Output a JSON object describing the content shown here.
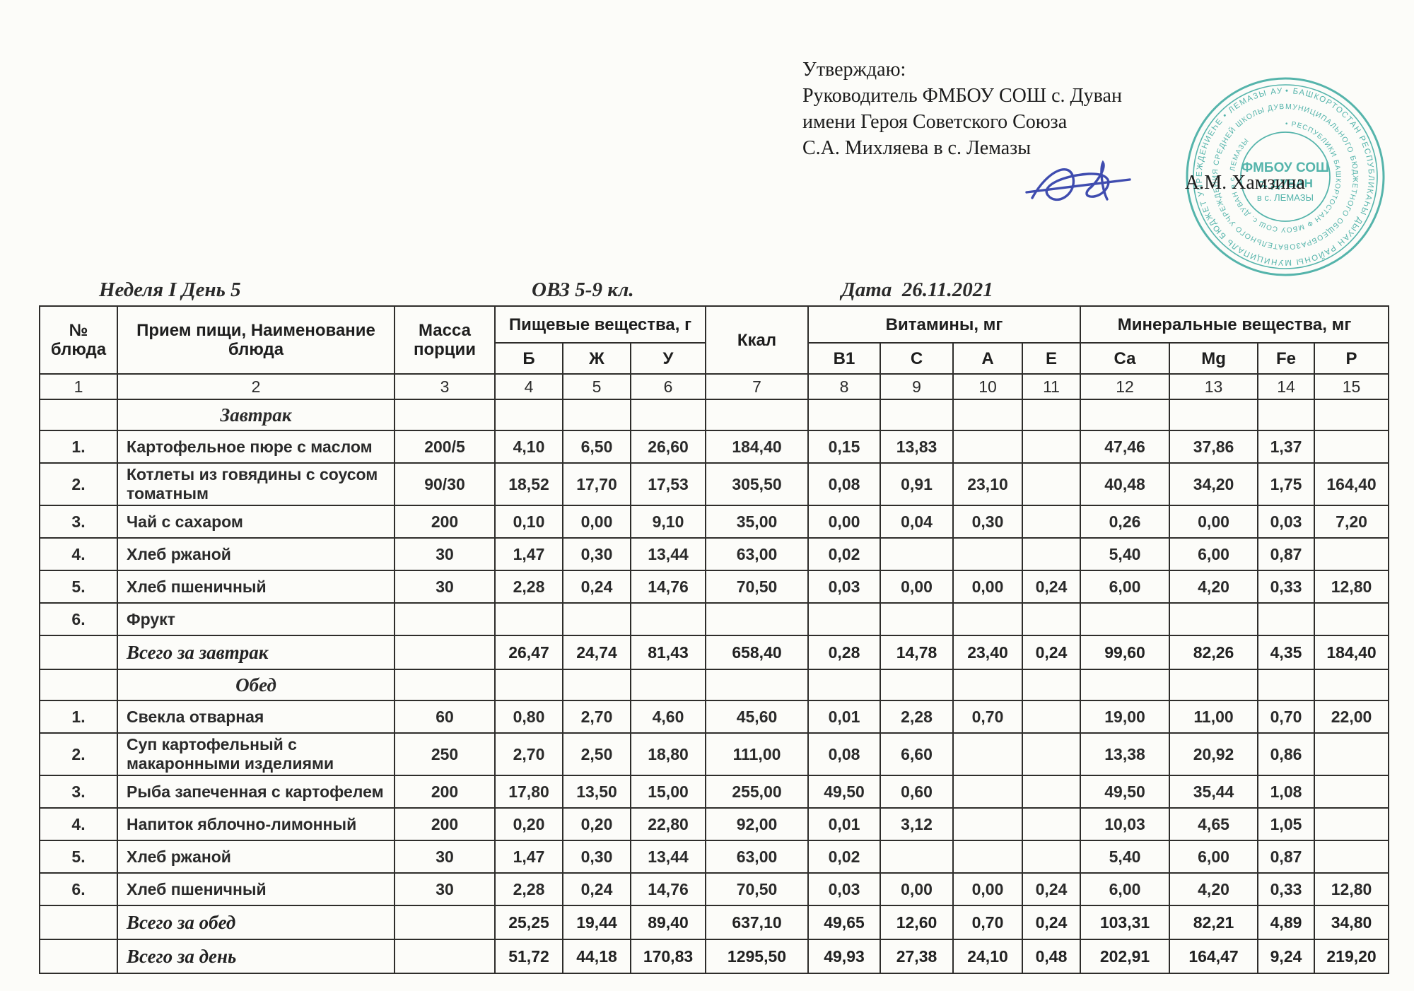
{
  "approval": {
    "line1": "Утверждаю:",
    "line2": "Руководитель ФМБОУ СОШ с. Дуван",
    "line3": "имени Героя Советского Союза",
    "line4": "С.А. Михляева в с. Лемазы",
    "signer": "А.М. Хамзина"
  },
  "stamp": {
    "color": "#31a59b",
    "outer_ring_text": "• БАШКОРТОСТАН РЕСПУБЛИКАҺЫ ДЫУАН РАЙОНЫ МУНИЦИПАЛЬ БЮДЖЕТ УЧРЕЖДЕНИЕҺЕ • ЛЕМАЗЫ АУЫЛЫ",
    "middle_ring_text": "МУНИЦИПАЛЬНОГО БЮДЖЕТНОГО ОБЩЕОБРАЗОВАТЕЛЬНОГО УЧРЕЖДЕНИЯ СРЕДНЕЙ ШКОЛЫ ДУВАНСКОГО РАЙОНА •",
    "inner_ring_text": "• РЕСПУБЛИКИ БАШКОРТОСТАН Ф МБОУ СОШ с. ДУВАН в с. ЛЕМАЗЫ",
    "center_line1": "ФМБОУ СОШ",
    "center_line2": "с. ДУВАН",
    "center_line3": "в с. ЛЕМАЗЫ"
  },
  "titles": {
    "week_day": "Неделя I День 5",
    "group": "ОВЗ 5-9 кл.",
    "date": "Дата  26.11.2021"
  },
  "table": {
    "header": {
      "col_dish_no": "№ блюда",
      "col_meal": "Прием пищи, Наименование блюда",
      "col_mass": "Масса порции",
      "grp_nutrients": "Пищевые вещества, г",
      "col_b": "Б",
      "col_zh": "Ж",
      "col_u": "У",
      "col_kcal": "Ккал",
      "grp_vitamins": "Витамины, мг",
      "col_b1": "В1",
      "col_c": "С",
      "col_a": "А",
      "col_e": "Е",
      "grp_minerals": "Минеральные вещества, мг",
      "col_ca": "Са",
      "col_mg": "Mg",
      "col_fe": "Fe",
      "col_p": "Р"
    },
    "rows": [
      {
        "type": "numbering",
        "cells": [
          "1",
          "2",
          "3",
          "4",
          "5",
          "6",
          "7",
          "8",
          "9",
          "10",
          "11",
          "12",
          "13",
          "14",
          "15"
        ]
      },
      {
        "type": "section",
        "cells": [
          "",
          "Завтрак",
          "",
          "",
          "",
          "",
          "",
          "",
          "",
          "",
          "",
          "",
          "",
          "",
          ""
        ]
      },
      {
        "type": "item",
        "cells": [
          "1.",
          "Картофельное пюре с маслом",
          "200/5",
          "4,10",
          "6,50",
          "26,60",
          "184,40",
          "0,15",
          "13,83",
          "",
          "",
          "47,46",
          "37,86",
          "1,37",
          ""
        ]
      },
      {
        "type": "item",
        "cells": [
          "2.",
          "Котлеты из говядины с соусом томатным",
          "90/30",
          "18,52",
          "17,70",
          "17,53",
          "305,50",
          "0,08",
          "0,91",
          "23,10",
          "",
          "40,48",
          "34,20",
          "1,75",
          "164,40"
        ]
      },
      {
        "type": "item",
        "cells": [
          "3.",
          "Чай с сахаром",
          "200",
          "0,10",
          "0,00",
          "9,10",
          "35,00",
          "0,00",
          "0,04",
          "0,30",
          "",
          "0,26",
          "0,00",
          "0,03",
          "7,20"
        ]
      },
      {
        "type": "item",
        "cells": [
          "4.",
          "Хлеб ржаной",
          "30",
          "1,47",
          "0,30",
          "13,44",
          "63,00",
          "0,02",
          "",
          "",
          "",
          "5,40",
          "6,00",
          "0,87",
          ""
        ]
      },
      {
        "type": "item",
        "cells": [
          "5.",
          "Хлеб пшеничный",
          "30",
          "2,28",
          "0,24",
          "14,76",
          "70,50",
          "0,03",
          "0,00",
          "0,00",
          "0,24",
          "6,00",
          "4,20",
          "0,33",
          "12,80"
        ]
      },
      {
        "type": "item",
        "cells": [
          "6.",
          "Фрукт",
          "",
          "",
          "",
          "",
          "",
          "",
          "",
          "",
          "",
          "",
          "",
          "",
          ""
        ]
      },
      {
        "type": "total",
        "cells": [
          "",
          "Всего за завтрак",
          "",
          "26,47",
          "24,74",
          "81,43",
          "658,40",
          "0,28",
          "14,78",
          "23,40",
          "0,24",
          "99,60",
          "82,26",
          "4,35",
          "184,40"
        ]
      },
      {
        "type": "section",
        "cells": [
          "",
          "Обед",
          "",
          "",
          "",
          "",
          "",
          "",
          "",
          "",
          "",
          "",
          "",
          "",
          ""
        ]
      },
      {
        "type": "item",
        "cells": [
          "1.",
          "Свекла отварная",
          "60",
          "0,80",
          "2,70",
          "4,60",
          "45,60",
          "0,01",
          "2,28",
          "0,70",
          "",
          "19,00",
          "11,00",
          "0,70",
          "22,00"
        ]
      },
      {
        "type": "item",
        "cells": [
          "2.",
          "Суп картофельный с макаронными изделиями",
          "250",
          "2,70",
          "2,50",
          "18,80",
          "111,00",
          "0,08",
          "6,60",
          "",
          "",
          "13,38",
          "20,92",
          "0,86",
          ""
        ]
      },
      {
        "type": "item",
        "cells": [
          "3.",
          "Рыба запеченная с картофелем",
          "200",
          "17,80",
          "13,50",
          "15,00",
          "255,00",
          "49,50",
          "0,60",
          "",
          "",
          "49,50",
          "35,44",
          "1,08",
          ""
        ]
      },
      {
        "type": "item",
        "cells": [
          "4.",
          "Напиток яблочно-лимонный",
          "200",
          "0,20",
          "0,20",
          "22,80",
          "92,00",
          "0,01",
          "3,12",
          "",
          "",
          "10,03",
          "4,65",
          "1,05",
          ""
        ]
      },
      {
        "type": "item",
        "cells": [
          "5.",
          "Хлеб ржаной",
          "30",
          "1,47",
          "0,30",
          "13,44",
          "63,00",
          "0,02",
          "",
          "",
          "",
          "5,40",
          "6,00",
          "0,87",
          ""
        ]
      },
      {
        "type": "item",
        "cells": [
          "6.",
          "Хлеб пшеничный",
          "30",
          "2,28",
          "0,24",
          "14,76",
          "70,50",
          "0,03",
          "0,00",
          "0,00",
          "0,24",
          "6,00",
          "4,20",
          "0,33",
          "12,80"
        ]
      },
      {
        "type": "total",
        "cells": [
          "",
          "Всего за обед",
          "",
          "25,25",
          "19,44",
          "89,40",
          "637,10",
          "49,65",
          "12,60",
          "0,70",
          "0,24",
          "103,31",
          "82,21",
          "4,89",
          "34,80"
        ]
      },
      {
        "type": "total",
        "cells": [
          "",
          "Всего за день",
          "",
          "51,72",
          "44,18",
          "170,83",
          "1295,50",
          "49,93",
          "27,38",
          "24,10",
          "0,48",
          "202,91",
          "164,47",
          "9,24",
          "219,20"
        ]
      }
    ]
  }
}
